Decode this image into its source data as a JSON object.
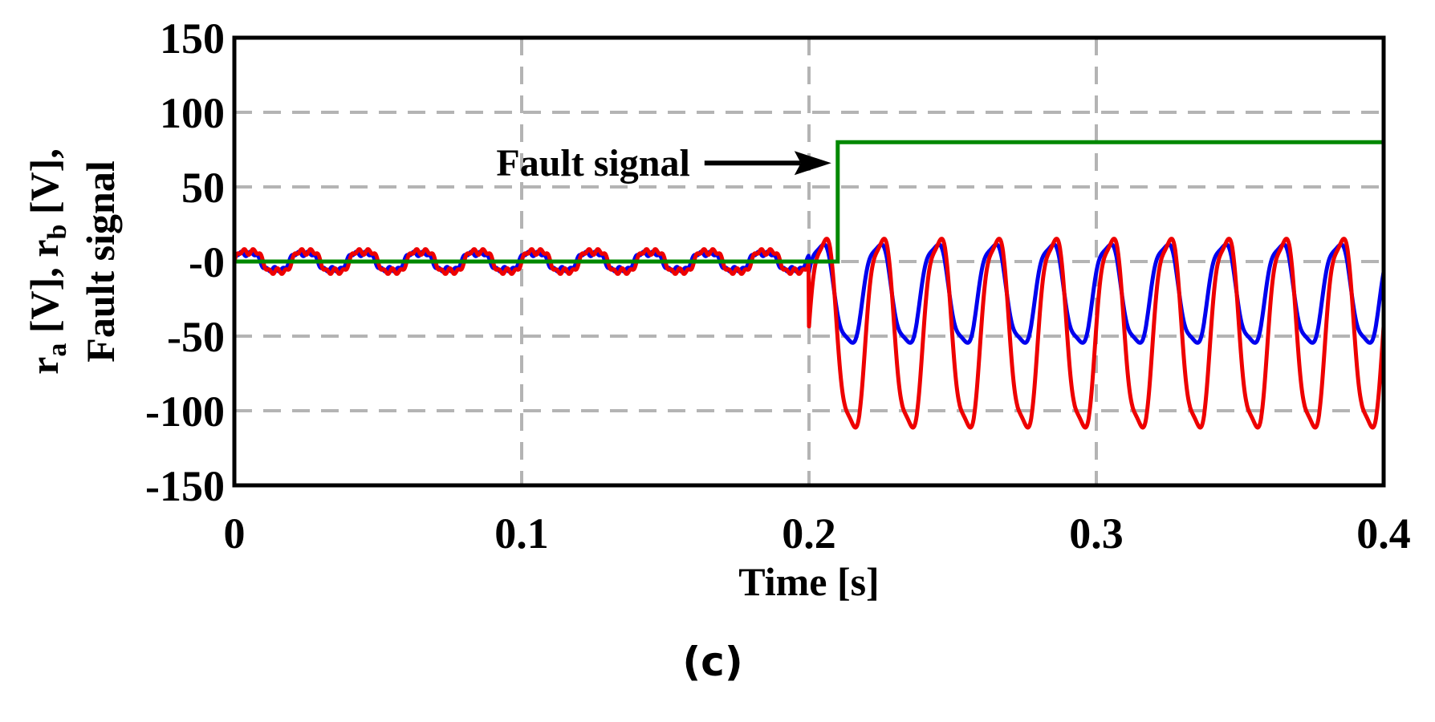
{
  "chart_data": {
    "type": "line",
    "xlabel": "Time [s]",
    "ylabel": {
      "line1": [
        "r",
        "a",
        " [V], r",
        "b",
        " [V],"
      ],
      "line2": "Fault signal"
    },
    "xlim": [
      0,
      0.4
    ],
    "ylim": [
      -150,
      150
    ],
    "xticks": [
      0,
      0.1,
      0.2,
      0.3,
      0.4
    ],
    "xtick_labels": [
      "0",
      "0.1",
      "0.2",
      "0.3",
      "0.4"
    ],
    "yticks": [
      150,
      100,
      50,
      0,
      -50,
      -100,
      -150
    ],
    "ytick_labels": [
      "150",
      "100",
      "50",
      "-0",
      "-50",
      "-100",
      "-150"
    ],
    "grid": true,
    "fault_time": 0.2,
    "signal_frequency_hz": 50,
    "series": [
      {
        "color": "#0000ee",
        "pre_fault": {
          "offset": 0,
          "amplitude": 8
        },
        "post_fault": {
          "max": 15,
          "min": -58
        }
      },
      {
        "color": "#ee0000",
        "pre_fault": {
          "offset": 0,
          "amplitude": 10
        },
        "post_fault": {
          "max": 22,
          "min": -118
        }
      },
      {
        "color": "#008800",
        "step": {
          "before": 0,
          "after": 80,
          "step_time": 0.21
        }
      }
    ],
    "annotation": {
      "text": "Fault signal",
      "arrow_to": {
        "x": 0.21,
        "y": 66
      }
    }
  },
  "caption": "(c)"
}
